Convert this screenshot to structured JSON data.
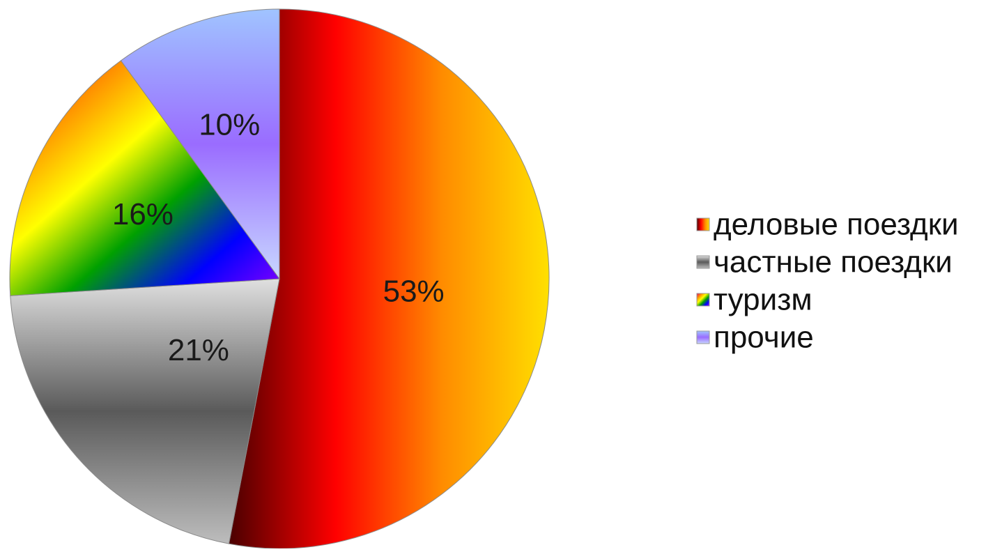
{
  "chart_data": {
    "type": "pie",
    "title": "",
    "categories": [
      "деловые поездки",
      "частные поездки",
      "туризм",
      "прочие"
    ],
    "values": [
      53,
      21,
      16,
      10
    ],
    "labels": [
      "53%",
      "21%",
      "16%",
      "10%"
    ],
    "legend_position": "right",
    "series_colors": [
      [
        "#4a0000",
        "#ff0000",
        "#ff8c00",
        "#ffe000"
      ],
      [
        "#e0e0e0",
        "#5a5a5a",
        "#bdbdbd"
      ],
      [
        "#e0007a",
        "#ff8a00",
        "#ffff00",
        "#00a000",
        "#0000ff",
        "#8a00ff"
      ],
      [
        "#a0c4ff",
        "#9a6cff",
        "#c8d8ff"
      ]
    ]
  }
}
